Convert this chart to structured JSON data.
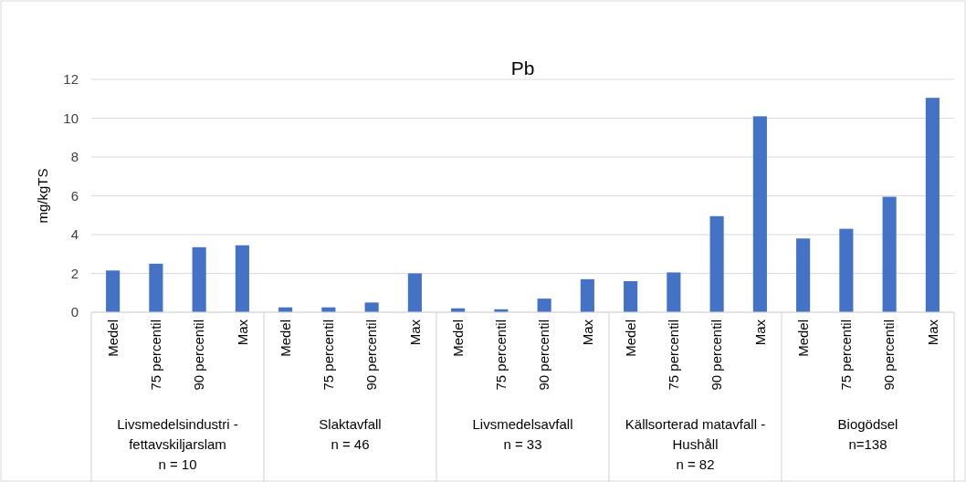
{
  "chart_data": {
    "type": "bar",
    "title": "Pb",
    "ylabel": "mg/kgTS",
    "categories": [
      "Medel",
      "75 percentil",
      "90 percentil",
      "Max",
      "Medel",
      "75 percentil",
      "90 percentil",
      "Max",
      "Medel",
      "75 percentil",
      "90 percentil",
      "Max",
      "Medel",
      "75 percentil",
      "90 percentil",
      "Max",
      "Medel",
      "75 percentil",
      "90 percentil",
      "Max"
    ],
    "values": [
      2.15,
      2.5,
      3.35,
      3.45,
      0.25,
      0.25,
      0.5,
      2.0,
      0.2,
      0.15,
      0.7,
      1.7,
      1.6,
      2.05,
      4.95,
      10.1,
      3.8,
      4.3,
      5.95,
      11.05
    ],
    "color": "#4472c4",
    "ylim": [
      0,
      12
    ],
    "yticks": [
      0,
      2,
      4,
      6,
      8,
      10,
      12
    ],
    "grid": "y",
    "annotations": [
      "Livsmedelsindustri -\nfettavskiljarslam\nn = 10",
      "Slaktavfall\nn = 46",
      "Livsmedelsavfall\nn = 33",
      "Källsorterad matavfall -\nHushåll\nn = 82",
      "Biogödsel\nn=138"
    ]
  }
}
